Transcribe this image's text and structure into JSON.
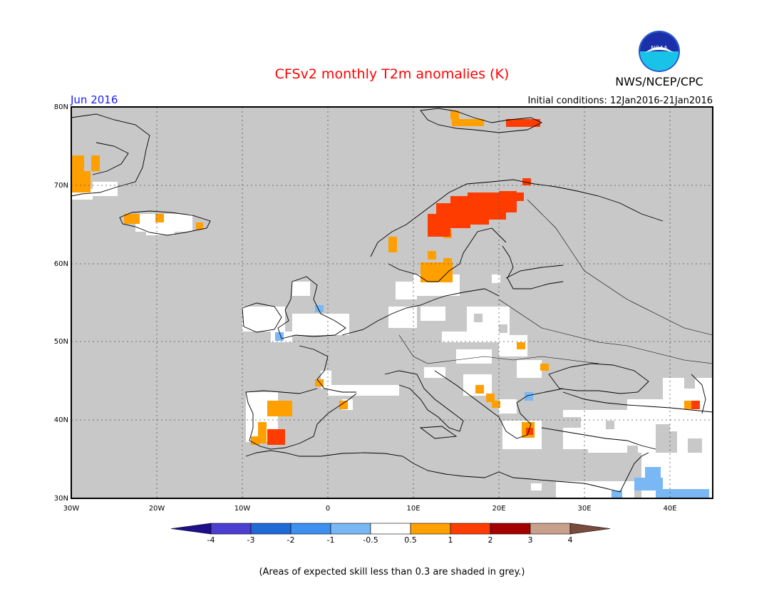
{
  "header": {
    "title": "CFSv2 monthly T2m anomalies (K)",
    "month": "Jun 2016",
    "initial_conditions": "Initial conditions: 12Jan2016-21Jan2016",
    "organization": "NWS/NCEP/CPC",
    "logo_text": "NOAA"
  },
  "map": {
    "lon_range": [
      -30,
      45
    ],
    "lat_range": [
      30,
      80
    ],
    "lon_labels": [
      "30W",
      "20W",
      "10W",
      "0",
      "10E",
      "20E",
      "30E",
      "40E"
    ],
    "lat_labels": [
      "30N",
      "40N",
      "50N",
      "60N",
      "70N",
      "80N"
    ],
    "background_color": "#c8c8c8",
    "region_labels": []
  },
  "colorbar": {
    "tick_labels": [
      "-4",
      "-3",
      "-2",
      "-1",
      "-0.5",
      "0.5",
      "1",
      "2",
      "3",
      "4"
    ],
    "colors": [
      "#1e0f8c",
      "#4b3fd1",
      "#1f6ad6",
      "#3d8ff0",
      "#7ab7f5",
      "#ffffff",
      "#ff9f00",
      "#ff3c00",
      "#a50000",
      "#c8a08c",
      "#7a4b3c"
    ]
  },
  "footnote": "(Areas of expected skill less than 0.3 are shaded in grey.)"
}
